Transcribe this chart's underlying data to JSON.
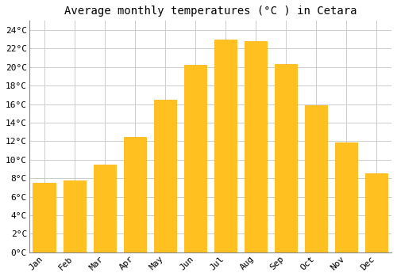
{
  "title": "Average monthly temperatures (°C ) in Cetara",
  "months": [
    "Jan",
    "Feb",
    "Mar",
    "Apr",
    "May",
    "Jun",
    "Jul",
    "Aug",
    "Sep",
    "Oct",
    "Nov",
    "Dec"
  ],
  "temperatures": [
    7.5,
    7.8,
    9.5,
    12.5,
    16.5,
    20.2,
    23.0,
    22.8,
    20.3,
    15.9,
    11.9,
    8.5
  ],
  "bar_color": "#FFC020",
  "bar_edge_color": "#FFB000",
  "background_color": "#FFFFFF",
  "plot_bg_color": "#FFFFFF",
  "grid_color": "#CCCCCC",
  "ylim": [
    0,
    25
  ],
  "yticks": [
    0,
    2,
    4,
    6,
    8,
    10,
    12,
    14,
    16,
    18,
    20,
    22,
    24
  ],
  "title_fontsize": 10,
  "tick_fontsize": 8,
  "font_family": "monospace"
}
